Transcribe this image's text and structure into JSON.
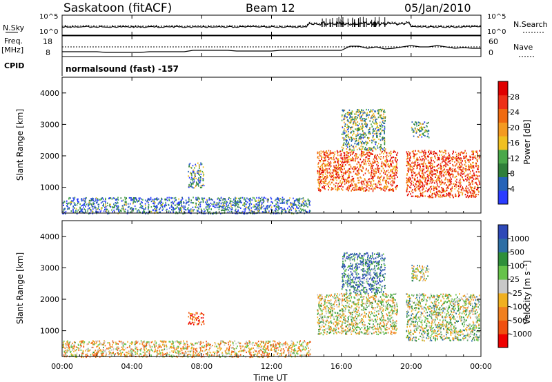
{
  "header": {
    "station": "Saskatoon (fitACF)",
    "beam": "Beam 12",
    "date": "05/Jan/2010"
  },
  "colors": {
    "power_scale": [
      "#2a3cff",
      "#2563b8",
      "#2f7f3a",
      "#4aa84a",
      "#f0c020",
      "#f49a20",
      "#f06a10",
      "#ee3018",
      "#e00000"
    ],
    "velocity_scale": [
      "#2e49b8",
      "#2d6ea4",
      "#2f8f3a",
      "#66c24a",
      "#c8c8c8",
      "#f0b020",
      "#f08020",
      "#f05010",
      "#ee0000"
    ],
    "line": "#000000"
  },
  "params_panel": {
    "left_labels": {
      "nsky": "N.Sky",
      "nsky_top": "10^5",
      "nsky_bottom": "10^0",
      "freq": "Freq.",
      "freq_unit": "[MHz]",
      "freq_top": "18",
      "freq_bottom": "8",
      "cpid": "CPID"
    },
    "right_labels": {
      "nsearch": "N.Search",
      "ns_top": "10^5",
      "ns_bottom": "10^0",
      "nave": "Nave",
      "nave_top": "60",
      "nave_bottom": "0"
    },
    "cpid_text": "normalsound (fast) -157"
  },
  "chart_data": [
    {
      "type": "heatmap",
      "name": "power",
      "ylabel": "Slant Range [km]",
      "ylim": [
        180,
        4500
      ],
      "xlim": [
        "00:00",
        "24:00"
      ],
      "yticks": [
        "1000",
        "2000",
        "3000",
        "4000"
      ],
      "colorbar": {
        "label": "Power [dB]",
        "ticks": [
          "4",
          "8",
          "12",
          "16",
          "20",
          "24",
          "28"
        ],
        "range": [
          0,
          30
        ]
      },
      "regions": [
        {
          "t": [
            0,
            14.2
          ],
          "r": [
            180,
            700
          ],
          "level": 0.2
        },
        {
          "t": [
            7.2,
            8.1
          ],
          "r": [
            1000,
            1800
          ],
          "level": 0.3
        },
        {
          "t": [
            14.6,
            19.2
          ],
          "r": [
            900,
            2200
          ],
          "level": 0.75
        },
        {
          "t": [
            16.0,
            18.5
          ],
          "r": [
            2200,
            3500
          ],
          "level": 0.35
        },
        {
          "t": [
            19.7,
            23.9
          ],
          "r": [
            700,
            2200
          ],
          "level": 0.8
        },
        {
          "t": [
            20.0,
            21.0
          ],
          "r": [
            2600,
            3100
          ],
          "level": 0.35
        }
      ]
    },
    {
      "type": "heatmap",
      "name": "velocity",
      "ylabel": "Slant Range [km]",
      "xlabel": "Time UT",
      "ylim": [
        180,
        4500
      ],
      "xlim": [
        "00:00",
        "24:00"
      ],
      "xticks": [
        "00:00",
        "04:00",
        "08:00",
        "12:00",
        "16:00",
        "20:00",
        "00:00"
      ],
      "yticks": [
        "1000",
        "2000",
        "3000",
        "4000"
      ],
      "colorbar": {
        "label": "Velocity [m s⁻¹]",
        "ticks": [
          "1000",
          "500",
          "100",
          "25",
          "-25",
          "-100",
          "-500",
          "-1000"
        ]
      },
      "regions": [
        {
          "t": [
            0,
            14.2
          ],
          "r": [
            180,
            700
          ],
          "level": 0.6
        },
        {
          "t": [
            7.2,
            8.1
          ],
          "r": [
            1200,
            1600
          ],
          "level": 0.85
        },
        {
          "t": [
            14.6,
            19.2
          ],
          "r": [
            900,
            2200
          ],
          "level": 0.5
        },
        {
          "t": [
            16.0,
            18.5
          ],
          "r": [
            2200,
            3500
          ],
          "level": 0.2
        },
        {
          "t": [
            19.7,
            23.9
          ],
          "r": [
            700,
            2200
          ],
          "level": 0.45
        },
        {
          "t": [
            20.0,
            21.0
          ],
          "r": [
            2600,
            3100
          ],
          "level": 0.45
        }
      ]
    }
  ]
}
